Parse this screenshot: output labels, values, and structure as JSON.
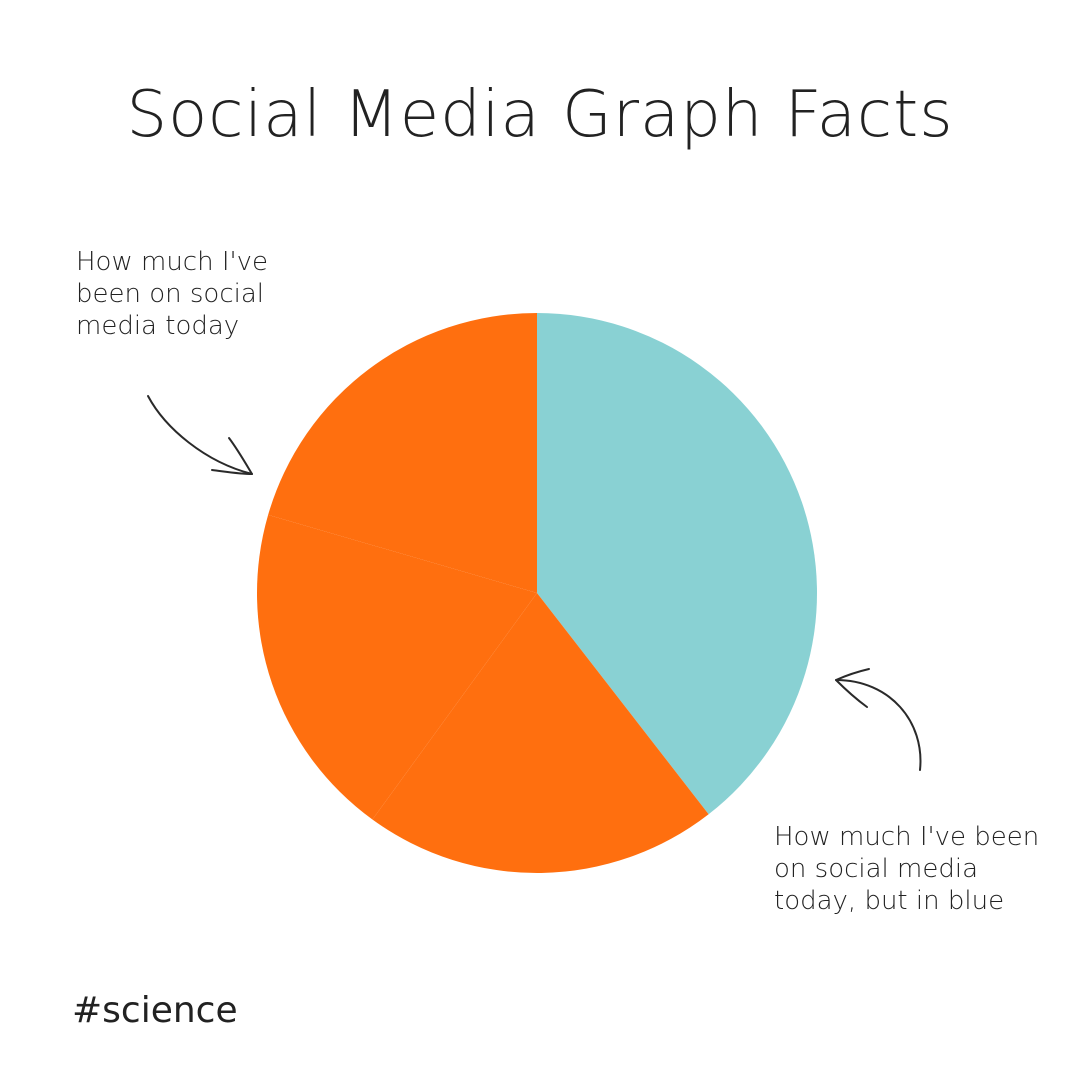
{
  "title": "Social Media Graph Facts",
  "annotations": {
    "left": "How much I've\nbeen on social\nmedia today",
    "right": "How much I've been\non social media\ntoday, but in blue"
  },
  "hashtag": "#science",
  "colors": {
    "orange": "#FF6F0F",
    "blue": "#89D1D3",
    "text": "#222222"
  },
  "chart_data": {
    "type": "pie",
    "title": "Social Media Graph Facts",
    "slices": [
      {
        "value": 39.5,
        "color": "#89D1D3"
      },
      {
        "value": 20.5,
        "color": "#FF6F0F"
      },
      {
        "value": 19.5,
        "color": "#FF6F0F"
      },
      {
        "value": 20.5,
        "color": "#FF6F0F"
      }
    ],
    "start_angle_deg": 0,
    "direction": "clockwise",
    "legend": "none"
  }
}
